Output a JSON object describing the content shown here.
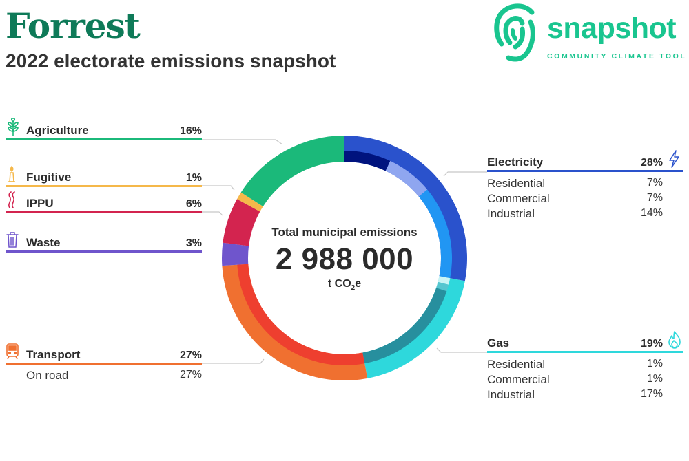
{
  "header": {
    "title": "Forrest",
    "subtitle": "2022 electorate emissions snapshot"
  },
  "logo": {
    "wordmark": "snapshot",
    "tagline": "COMMUNITY CLIMATE TOOL",
    "color": "#19c58f"
  },
  "center": {
    "label": "Total municipal emissions",
    "value": "2 988 000",
    "unit_main": "t CO",
    "unit_sub": "2",
    "unit_tail": "e"
  },
  "categories": {
    "agriculture": {
      "label": "Agriculture",
      "pct": "16%",
      "icon": "sprout-icon",
      "color": "#1bb97a"
    },
    "fugitive": {
      "label": "Fugitive",
      "pct": "1%",
      "icon": "flare-icon",
      "color": "#f5b84a"
    },
    "ippu": {
      "label": "IPPU",
      "pct": "6%",
      "icon": "smoke-icon",
      "color": "#d3244f"
    },
    "waste": {
      "label": "Waste",
      "pct": "3%",
      "icon": "bin-icon",
      "color": "#6f55cc"
    },
    "transport": {
      "label": "Transport",
      "pct": "27%",
      "icon": "train-icon",
      "color": "#f07030",
      "subs": [
        {
          "label": "On road",
          "pct": "27%"
        }
      ]
    },
    "electricity": {
      "label": "Electricity",
      "pct": "28%",
      "icon": "lightning-icon",
      "color": "#2a52cc",
      "subs": [
        {
          "label": "Residential",
          "pct": "7%"
        },
        {
          "label": "Commercial",
          "pct": "7%"
        },
        {
          "label": "Industrial",
          "pct": "14%"
        }
      ]
    },
    "gas": {
      "label": "Gas",
      "pct": "19%",
      "icon": "flame-icon",
      "color": "#2ed8dc",
      "subs": [
        {
          "label": "Residential",
          "pct": "1%"
        },
        {
          "label": "Commercial",
          "pct": "1%"
        },
        {
          "label": "Industrial",
          "pct": "17%"
        }
      ]
    }
  },
  "chart_data": {
    "type": "pie",
    "title": "Total municipal emissions",
    "total": 2988000,
    "unit": "t CO2e",
    "series": [
      {
        "name": "Electricity",
        "value": 28,
        "color": "#2a52cc",
        "subs": [
          {
            "name": "Residential",
            "value": 7,
            "color": "#00137e"
          },
          {
            "name": "Commercial",
            "value": 7,
            "color": "#8fa6f0"
          },
          {
            "name": "Industrial",
            "value": 14,
            "color": "#2196f3"
          }
        ]
      },
      {
        "name": "Gas",
        "value": 19,
        "color": "#2ed8dc",
        "subs": [
          {
            "name": "Residential",
            "value": 1,
            "color": "#c9f4f5"
          },
          {
            "name": "Commercial",
            "value": 1,
            "color": "#55c6d0"
          },
          {
            "name": "Industrial",
            "value": 17,
            "color": "#278f9e"
          }
        ]
      },
      {
        "name": "Transport",
        "value": 27,
        "color": "#f07030",
        "subs": [
          {
            "name": "On road",
            "value": 27,
            "color": "#ee3f2f"
          }
        ]
      },
      {
        "name": "Waste",
        "value": 3,
        "color": "#6f55cc"
      },
      {
        "name": "IPPU",
        "value": 6,
        "color": "#d3244f"
      },
      {
        "name": "Fugitive",
        "value": 1,
        "color": "#f5b84a"
      },
      {
        "name": "Agriculture",
        "value": 16,
        "color": "#1bb97a"
      }
    ]
  }
}
